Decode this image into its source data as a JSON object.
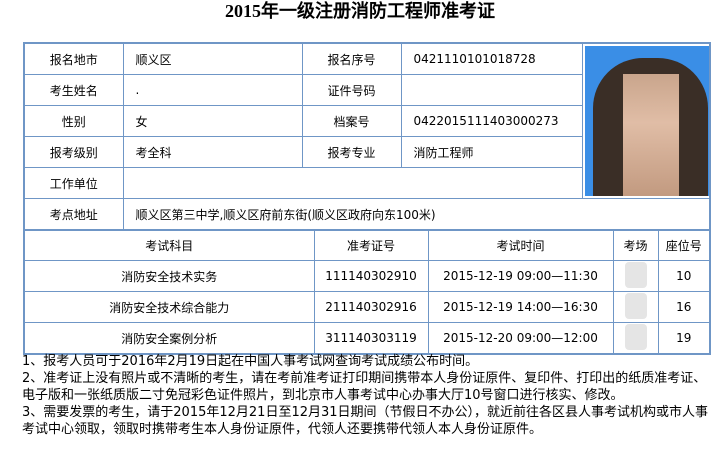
{
  "title": "2015年一级注册消防工程师准考证",
  "info": {
    "region_label": "报名地市",
    "region": "顺义区",
    "reg_no_label": "报名序号",
    "reg_no": "0421110101018728",
    "name_label": "考生姓名",
    "name": ".",
    "id_label": "证件号码",
    "id": "",
    "gender_label": "性别",
    "gender": "女",
    "file_no_label": "档案号",
    "file_no": "0422015111403000273",
    "level_label": "报考级别",
    "level": "考全科",
    "major_label": "报考专业",
    "major": "消防工程师",
    "employer_label": "工作单位",
    "employer": "",
    "address_label": "考点地址",
    "address": "顺义区第三中学,顺义区府前东街(顺义区政府向东100米)"
  },
  "exams": {
    "headers": [
      "考试科目",
      "准考证号",
      "考试时间",
      "考场",
      "座位号"
    ],
    "rows": [
      {
        "subject": "消防安全技术实务",
        "ticket": "111140302910",
        "time": "2015-12-19 09:00—11:30",
        "seat": "10"
      },
      {
        "subject": "消防安全技术综合能力",
        "ticket": "211140302916",
        "time": "2015-12-19 14:00—16:30",
        "seat": "16"
      },
      {
        "subject": "消防安全案例分析",
        "ticket": "311140303119",
        "time": "2015-12-20 09:00—12:00",
        "seat": "19"
      }
    ]
  },
  "notes": [
    "1、报考人员可于2016年2月19日起在中国人事考试网查询考试成绩公布时间。",
    "2、准考证上没有照片或不清晰的考生，请在考前准考证打印期间携带本人身份证原件、复印件、打印出的纸质准考证、电子版和一张纸质版二寸免冠彩色证件照片，到北京市人事考试中心办事大厅10号窗口进行核实、修改。",
    "3、需要发票的考生，请于2015年12月21日至12月31日期间（节假日不办公），就近前往各区县人事考试机构或市人事考试中心领取，领取时携带考生本人身份证原件，代领人还要携带代领人本人身份证原件。"
  ]
}
